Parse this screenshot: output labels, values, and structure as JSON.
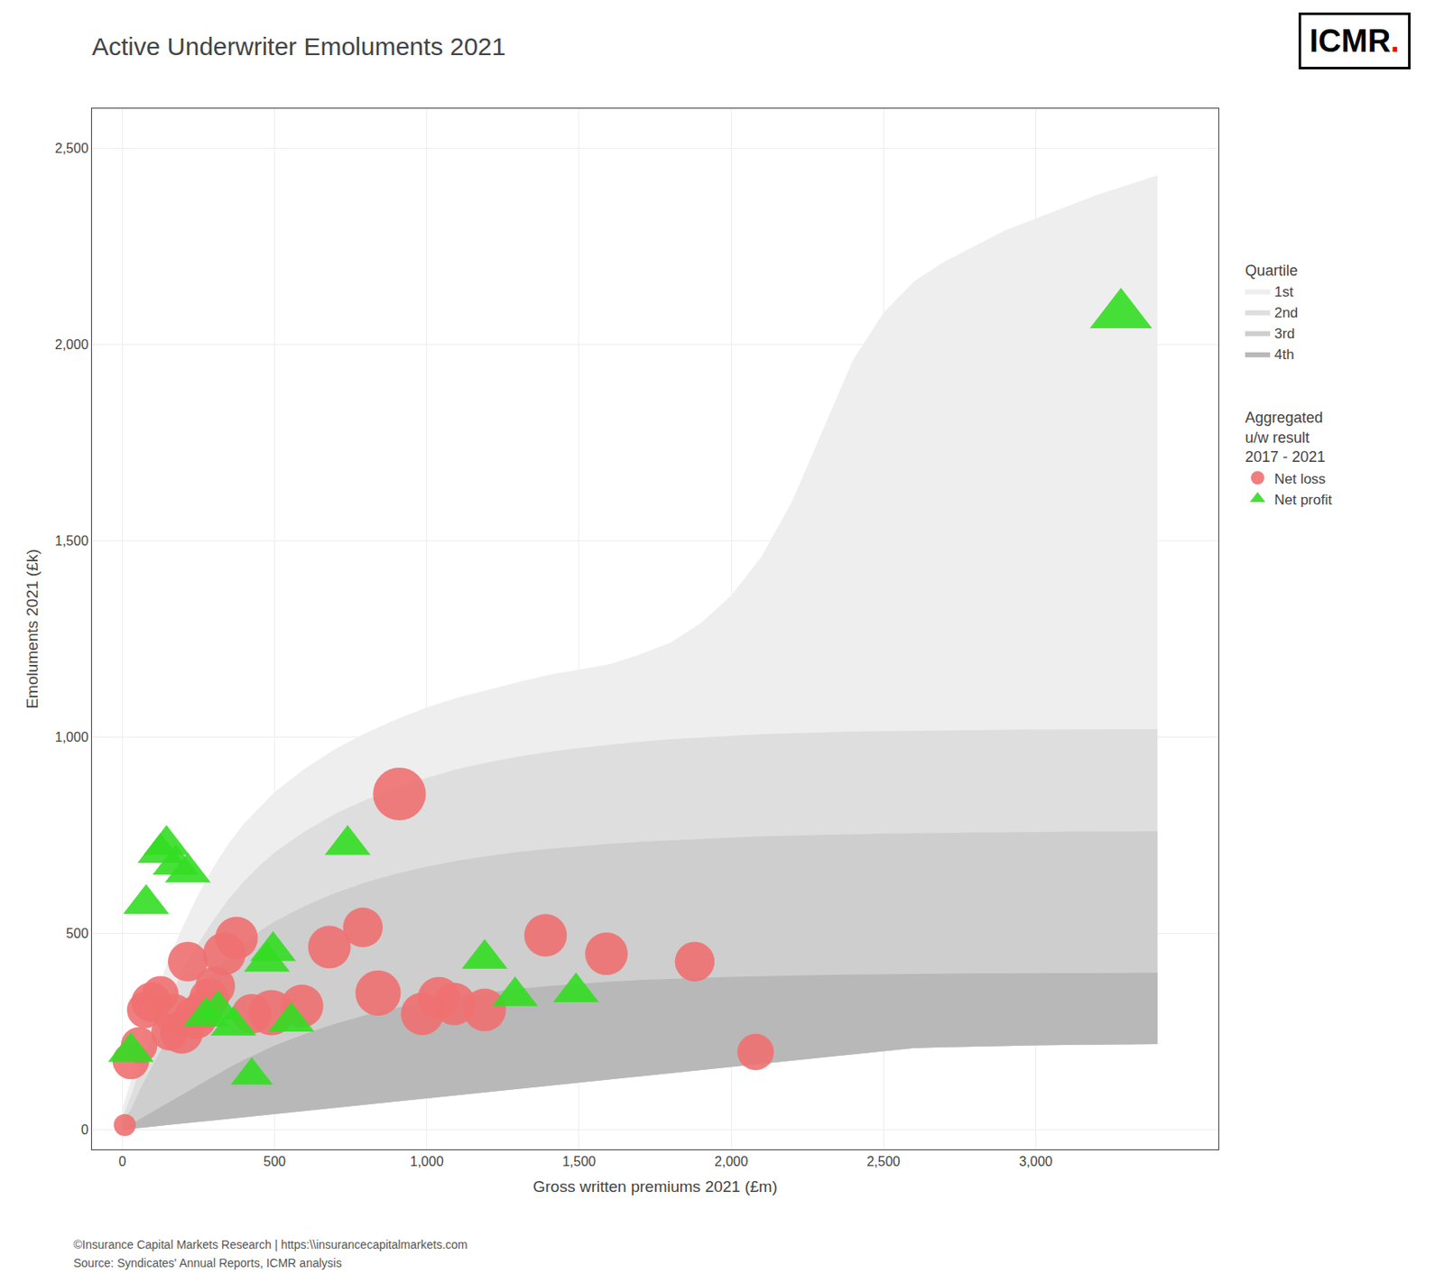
{
  "chart_data": {
    "type": "scatter",
    "title": "Active Underwriter Emoluments 2021",
    "xlabel": "Gross written premiums 2021 (£m)",
    "ylabel": "Emoluments 2021 (£k)",
    "xlim": [
      -100,
      3600
    ],
    "ylim": [
      -50,
      2600
    ],
    "xticks": [
      0,
      500,
      {
        "value": 1000,
        "label": "1,000"
      },
      {
        "value": 1500,
        "label": "1,500"
      },
      {
        "value": 2000,
        "label": "2,000"
      },
      {
        "value": 2500,
        "label": "2,500"
      },
      {
        "value": 3000,
        "label": "3,000"
      }
    ],
    "yticks": [
      0,
      500,
      {
        "value": 1000,
        "label": "1,000"
      },
      {
        "value": 1500,
        "label": "1,500"
      },
      {
        "value": 2000,
        "label": "2,000"
      },
      {
        "value": 2500,
        "label": "2,500"
      }
    ],
    "grid": true,
    "legend": "right",
    "bands": {
      "title": "Quartile",
      "x": [
        0,
        30,
        60,
        100,
        150,
        200,
        250,
        300,
        350,
        400,
        450,
        500,
        600,
        700,
        800,
        900,
        1000,
        1100,
        1200,
        1300,
        1400,
        1500,
        1600,
        1700,
        1800,
        1900,
        2000,
        2100,
        2200,
        2300,
        2400,
        2500,
        2600,
        2700,
        2800,
        2900,
        3000,
        3100,
        3200,
        3300,
        3400
      ],
      "lower": [
        0,
        2,
        5,
        8,
        12,
        16,
        20,
        24,
        28,
        32,
        36,
        40,
        48,
        56,
        64,
        72,
        80,
        88,
        96,
        104,
        112,
        120,
        128,
        136,
        144,
        152,
        160,
        168,
        176,
        184,
        192,
        200,
        208,
        210,
        212,
        214,
        215,
        216,
        217,
        218,
        218
      ],
      "series": [
        {
          "name": "1st",
          "color": "#eeeeee",
          "upper": [
            55,
            130,
            220,
            320,
            430,
            520,
            600,
            670,
            730,
            780,
            820,
            860,
            920,
            970,
            1010,
            1045,
            1075,
            1100,
            1120,
            1140,
            1158,
            1172,
            1185,
            1210,
            1240,
            1290,
            1360,
            1460,
            1600,
            1780,
            1960,
            2080,
            2160,
            2210,
            2250,
            2290,
            2320,
            2350,
            2380,
            2405,
            2430
          ]
        },
        {
          "name": "2nd",
          "color": "#dedede",
          "upper": [
            30,
            90,
            160,
            240,
            330,
            405,
            475,
            535,
            588,
            633,
            672,
            706,
            760,
            805,
            840,
            870,
            896,
            918,
            935,
            950,
            962,
            972,
            980,
            988,
            994,
            999,
            1003,
            1007,
            1010,
            1012,
            1014,
            1015,
            1016,
            1017,
            1018,
            1018,
            1019,
            1019,
            1020,
            1020,
            1020
          ]
        },
        {
          "name": "3rd",
          "color": "#cecece",
          "upper": [
            16,
            55,
            105,
            165,
            235,
            295,
            350,
            398,
            440,
            475,
            505,
            530,
            570,
            603,
            630,
            652,
            670,
            685,
            697,
            707,
            715,
            722,
            728,
            733,
            737,
            741,
            744,
            747,
            749,
            751,
            753,
            754,
            755,
            756,
            757,
            758,
            758,
            759,
            759,
            760,
            760
          ]
        },
        {
          "name": "4th",
          "color": "#b8b8b8",
          "upper": [
            3,
            14,
            28,
            46,
            68,
            90,
            113,
            136,
            158,
            178,
            196,
            214,
            244,
            270,
            292,
            310,
            326,
            339,
            350,
            359,
            366,
            372,
            377,
            381,
            384,
            387,
            389,
            391,
            393,
            394,
            395,
            396,
            397,
            397,
            398,
            398,
            399,
            399,
            399,
            400,
            400
          ]
        }
      ]
    },
    "series_title": "Aggregated\nu/w result\n2017 - 2021",
    "series": [
      {
        "name": "Net loss",
        "marker": "circle",
        "color": "#f07070",
        "x": [
          8,
          28,
          55,
          75,
          95,
          125,
          155,
          170,
          195,
          215,
          240,
          265,
          285,
          305,
          335,
          375,
          425,
          490,
          590,
          680,
          790,
          840,
          910,
          985,
          1040,
          1090,
          1190,
          1390,
          1590,
          1880,
          2080
        ],
        "y": [
          12,
          175,
          215,
          305,
          325,
          345,
          248,
          295,
          248,
          428,
          285,
          305,
          335,
          365,
          448,
          488,
          295,
          298,
          315,
          465,
          515,
          348,
          855,
          295,
          335,
          320,
          305,
          495,
          448,
          428,
          198
        ],
        "sizes": [
          20,
          55,
          55,
          55,
          65,
          55,
          55,
          65,
          75,
          65,
          75,
          65,
          65,
          65,
          75,
          75,
          65,
          85,
          75,
          75,
          65,
          85,
          115,
          75,
          75,
          75,
          75,
          75,
          75,
          65,
          55
        ]
      },
      {
        "name": "Net profit",
        "marker": "triangle-up",
        "color": "#33dd22",
        "x": [
          28,
          78,
          125,
          145,
          175,
          215,
          275,
          315,
          365,
          425,
          475,
          495,
          555,
          740,
          1190,
          1290,
          1490,
          3280
        ],
        "y": [
          198,
          575,
          705,
          725,
          675,
          655,
          288,
          305,
          265,
          138,
          428,
          455,
          275,
          725,
          435,
          340,
          350,
          2075
        ],
        "sizes": [
          65,
          65,
          65,
          65,
          65,
          65,
          65,
          65,
          65,
          55,
          65,
          65,
          65,
          65,
          65,
          65,
          65,
          120
        ]
      }
    ],
    "logo": {
      "text": "ICMR",
      "accent": ".",
      "accent_color": "#ff0000"
    },
    "annotations": [
      "©Insurance Capital Markets Research | https:\\\\insurancecapitalmarkets.com",
      "Source: Syndicates' Annual Reports, ICMR analysis"
    ]
  }
}
